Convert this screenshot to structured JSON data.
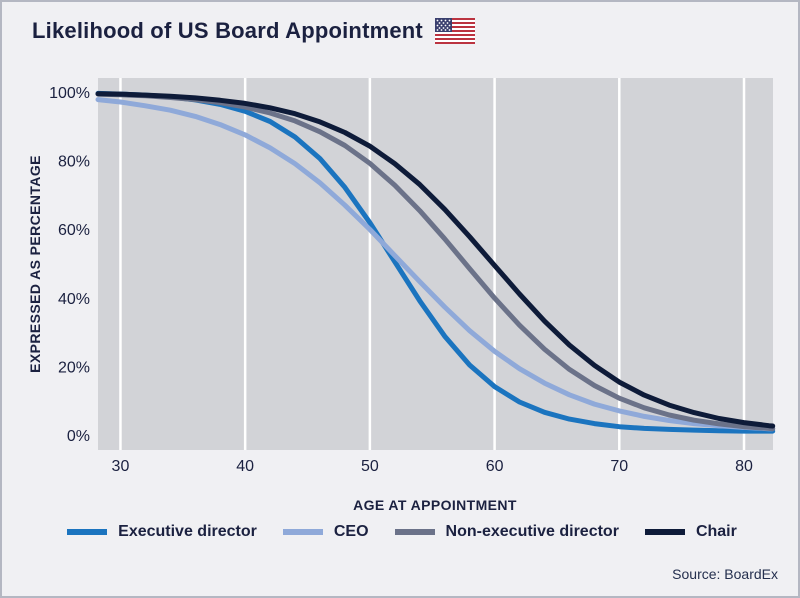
{
  "header": {
    "title": "Likelihood of US Board Appointment",
    "flag_icon": "us-flag"
  },
  "footer": {
    "source": "Source: BoardEx"
  },
  "chart_data": {
    "type": "line",
    "title": "Likelihood of US Board Appointment",
    "xlabel": "AGE AT APPOINTMENT",
    "ylabel": "EXPRESSED AS PERCENTAGE",
    "grid": "vertical-only",
    "legend_position": "bottom",
    "plot_bg": "#d2d3d7",
    "gridline_color": "#ffffff",
    "xlim": [
      28.2,
      82.3
    ],
    "ylim": [
      0,
      100
    ],
    "ylim_padded": [
      -4.4,
      104.1
    ],
    "x_ticks": [
      30,
      40,
      50,
      60,
      70,
      80
    ],
    "y_ticks": [
      0,
      20,
      40,
      60,
      80,
      100
    ],
    "y_tick_suffix": "%",
    "x": [
      28.2,
      30,
      32,
      34,
      36,
      38,
      40,
      42,
      44,
      46,
      48,
      50,
      52,
      54,
      56,
      58,
      60,
      62,
      64,
      66,
      68,
      70,
      72,
      74,
      76,
      78,
      80,
      82,
      82.3
    ],
    "series": [
      {
        "name": "Executive director",
        "color": "#1b74bf",
        "values": [
          99.6,
          99.4,
          99.1,
          98.6,
          97.7,
          96.4,
          94.4,
          91.4,
          86.9,
          80.6,
          72.2,
          61.9,
          50.5,
          39.1,
          28.8,
          20.4,
          14.1,
          9.6,
          6.6,
          4.6,
          3.3,
          2.4,
          1.9,
          1.6,
          1.4,
          1.2,
          1.1,
          1.1,
          1.1
        ]
      },
      {
        "name": "CEO",
        "color": "#8fa9d9",
        "values": [
          97.8,
          97.1,
          96.0,
          94.7,
          92.9,
          90.5,
          87.5,
          83.7,
          79.1,
          73.5,
          67.0,
          59.9,
          52.3,
          44.7,
          37.3,
          30.4,
          24.4,
          19.3,
          15.1,
          11.7,
          9.0,
          7.0,
          5.4,
          4.2,
          3.3,
          2.7,
          2.2,
          1.8,
          1.8
        ]
      },
      {
        "name": "Non-executive director",
        "color": "#6b7289",
        "values": [
          99.4,
          99.2,
          98.9,
          98.4,
          97.8,
          96.9,
          95.6,
          93.9,
          91.6,
          88.4,
          84.4,
          79.2,
          72.8,
          65.4,
          57.2,
          48.5,
          39.9,
          32.0,
          25.0,
          19.1,
          14.4,
          10.7,
          7.9,
          5.8,
          4.3,
          3.2,
          2.4,
          1.9,
          1.8
        ]
      },
      {
        "name": "Chair",
        "color": "#0e1b39",
        "values": [
          99.5,
          99.4,
          99.1,
          98.8,
          98.3,
          97.6,
          96.7,
          95.4,
          93.7,
          91.3,
          88.2,
          84.2,
          79.1,
          73.0,
          65.8,
          57.8,
          49.4,
          41.1,
          33.2,
          26.2,
          20.3,
          15.4,
          11.6,
          8.7,
          6.5,
          4.8,
          3.6,
          2.7,
          2.6
        ]
      }
    ]
  }
}
